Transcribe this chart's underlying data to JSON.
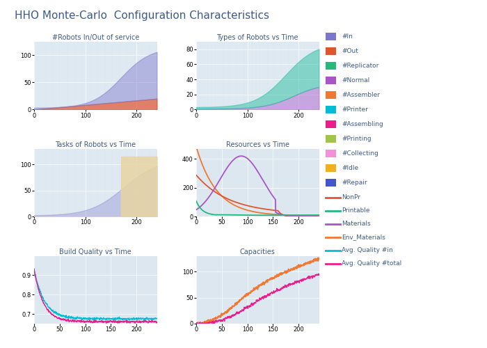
{
  "title": "HHO Monte-Carlo  Configuration Characteristics",
  "title_color": "#3d5a8a",
  "title_fontsize": 11,
  "background_color": "#ffffff",
  "subplot_bg": "#dce7f0",
  "legend_items_square": [
    {
      "label": "#In",
      "color": "#7b77cc"
    },
    {
      "label": "#Out",
      "color": "#e05530"
    },
    {
      "label": "#Replicator",
      "color": "#26b87d"
    },
    {
      "label": "#Normal",
      "color": "#a855c8"
    },
    {
      "label": "#Assembler",
      "color": "#f07830"
    },
    {
      "label": "#Printer",
      "color": "#00bcd4"
    },
    {
      "label": "#Assembling",
      "color": "#e91e8c"
    },
    {
      "label": "#Printing",
      "color": "#a3c44a"
    },
    {
      "label": "#Collecting",
      "color": "#f48fdc"
    },
    {
      "label": "#Idle",
      "color": "#f0b020"
    },
    {
      "label": "#Repair",
      "color": "#4455cc"
    }
  ],
  "legend_items_line": [
    {
      "label": "NonPr",
      "color": "#e05530"
    },
    {
      "label": "Printable",
      "color": "#26b87d"
    },
    {
      "label": "Materials",
      "color": "#a855c8"
    },
    {
      "label": "Env_Materials",
      "color": "#f07830"
    },
    {
      "label": "Avg. Quality #in",
      "color": "#00bcd4"
    },
    {
      "label": "Avg. Quality #total",
      "color": "#e91e8c"
    }
  ]
}
